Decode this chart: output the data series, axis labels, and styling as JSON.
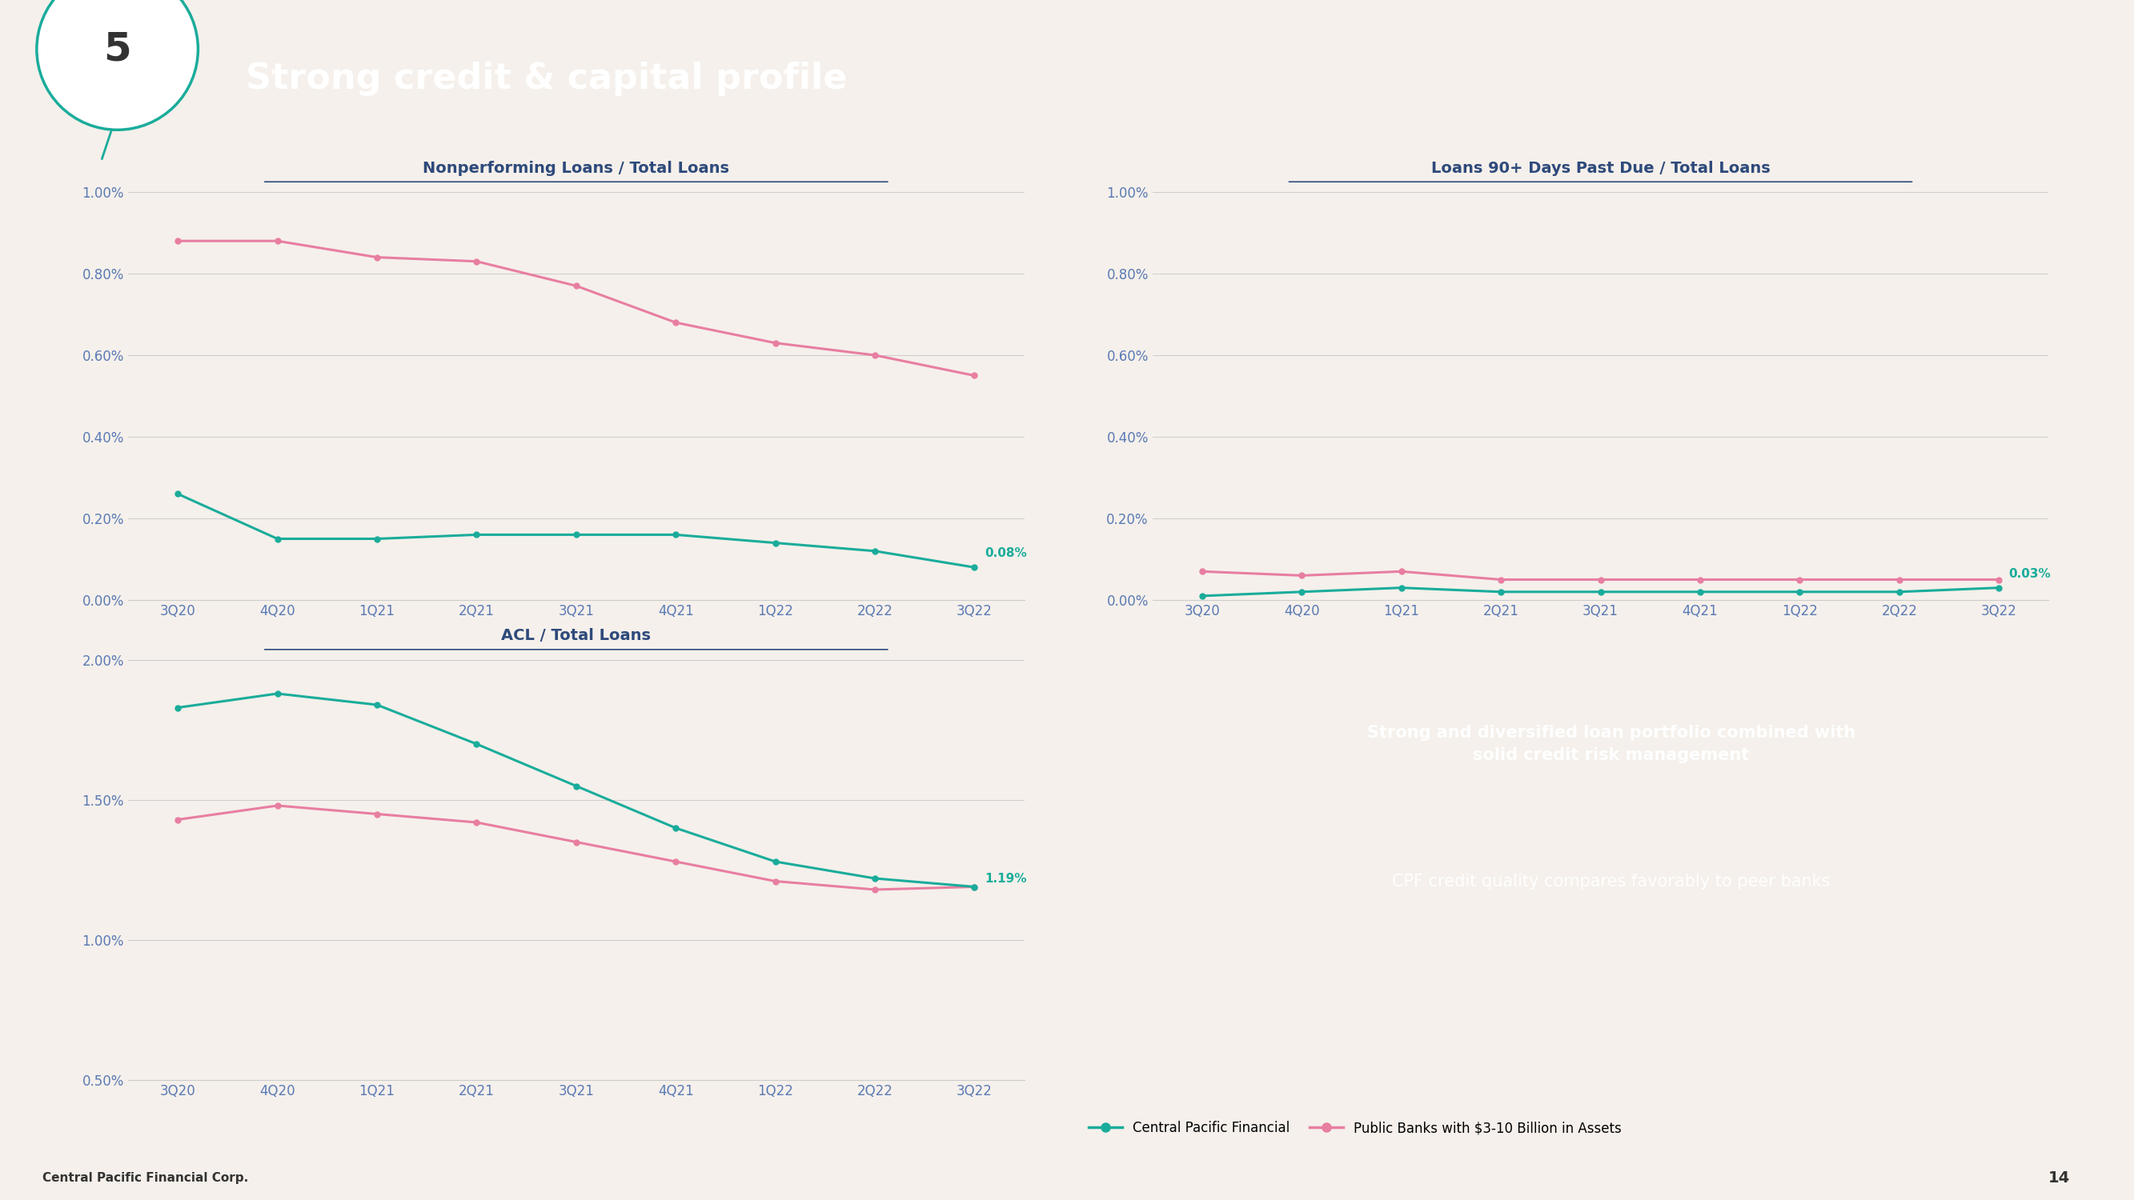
{
  "bg_color": "#f5f0eb",
  "header_color": "#1aac9b",
  "header_text": "Strong credit & capital profile",
  "slide_number": "5",
  "footer_text": "Central Pacific Financial Corp.",
  "page_number": "14",
  "x_labels": [
    "3Q20",
    "4Q20",
    "1Q21",
    "2Q21",
    "3Q21",
    "4Q21",
    "1Q22",
    "2Q22",
    "3Q22"
  ],
  "chart1_title": "Nonperforming Loans / Total Loans",
  "chart1_cpf": [
    0.0026,
    0.0015,
    0.0015,
    0.0016,
    0.0016,
    0.0016,
    0.0014,
    0.0012,
    0.0008
  ],
  "chart1_peer": [
    0.0088,
    0.0088,
    0.0084,
    0.0083,
    0.0077,
    0.0068,
    0.0063,
    0.006,
    0.0055
  ],
  "chart1_ylim": [
    0.0,
    0.01
  ],
  "chart1_yticks": [
    0.0,
    0.002,
    0.004,
    0.006,
    0.008,
    0.01
  ],
  "chart1_ytick_labels": [
    "0.00%",
    "0.20%",
    "0.40%",
    "0.60%",
    "0.80%",
    "1.00%"
  ],
  "chart1_annotation": "0.08%",
  "chart2_title": "Loans 90+ Days Past Due / Total Loans",
  "chart2_cpf": [
    0.0001,
    0.0002,
    0.0003,
    0.0002,
    0.0002,
    0.0002,
    0.0002,
    0.0002,
    0.0003
  ],
  "chart2_peer": [
    0.0007,
    0.0006,
    0.0007,
    0.0005,
    0.0005,
    0.0005,
    0.0005,
    0.0005,
    0.0005
  ],
  "chart2_ylim": [
    0.0,
    0.01
  ],
  "chart2_yticks": [
    0.0,
    0.002,
    0.004,
    0.006,
    0.008,
    0.01
  ],
  "chart2_ytick_labels": [
    "0.00%",
    "0.20%",
    "0.40%",
    "0.60%",
    "0.80%",
    "1.00%"
  ],
  "chart2_annotation": "0.03%",
  "chart3_title": "ACL / Total Loans",
  "chart3_cpf": [
    0.0183,
    0.0188,
    0.0184,
    0.017,
    0.0155,
    0.014,
    0.0128,
    0.0122,
    0.0119
  ],
  "chart3_peer": [
    0.0143,
    0.0148,
    0.0145,
    0.0142,
    0.0135,
    0.0128,
    0.0121,
    0.0118,
    0.0119
  ],
  "chart3_ylim": [
    0.005,
    0.02
  ],
  "chart3_yticks": [
    0.005,
    0.01,
    0.015,
    0.02
  ],
  "chart3_ytick_labels": [
    "0.50%",
    "1.00%",
    "1.50%",
    "2.00%"
  ],
  "chart3_annotation": "1.19%",
  "cpf_color": "#1aac9b",
  "peer_color": "#e87ea1",
  "title_color": "#2e4a7b",
  "tick_color": "#5a7ab5",
  "axis_color": "#cccccc",
  "text_box_color": "#1aac9b",
  "text_box_line1": "Strong and diversified loan portfolio combined with\nsolid credit risk management",
  "text_box_line2": "CPF credit quality compares favorably to peer banks",
  "legend_cpf": "Central Pacific Financial",
  "legend_peer": "Public Banks with $3-10 Billion in Assets"
}
